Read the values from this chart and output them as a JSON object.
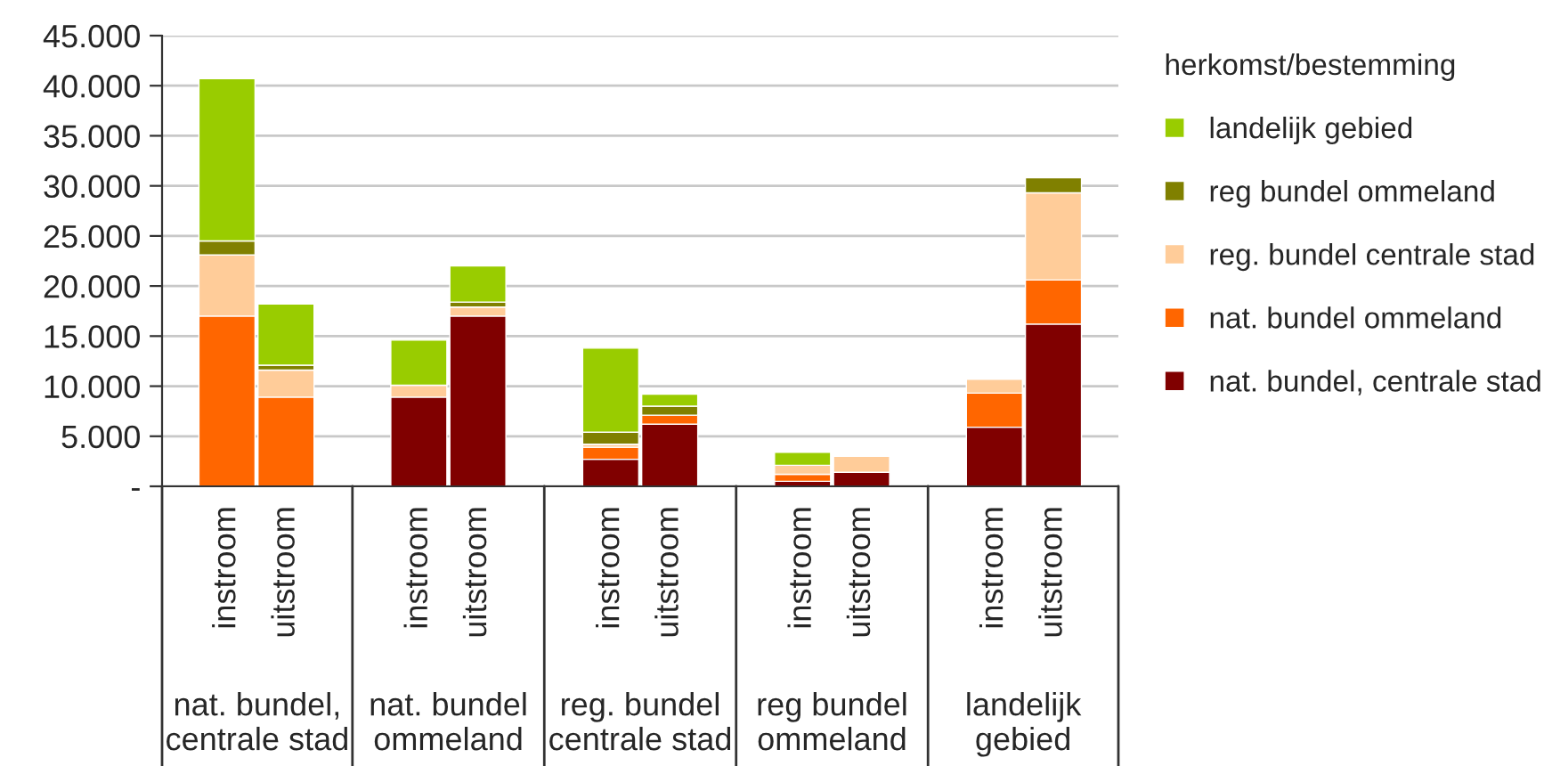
{
  "chart_data": {
    "type": "bar",
    "stacked": true,
    "legend_title": "herkomst/bestemming",
    "legend": "right",
    "grid": "y",
    "categories": [
      "instroom",
      "uitstroom",
      "instroom",
      "uitstroom",
      "instroom",
      "uitstroom",
      "instroom",
      "uitstroom",
      "instroom",
      "uitstroom"
    ],
    "annotations": [
      "nat. bundel, centrale stad",
      "nat. bundel ommeland",
      "reg. bundel centrale stad",
      "reg bundel ommeland",
      "landelijk gebied"
    ],
    "series": [
      {
        "name": "nat. bundel, centrale stad",
        "color": "#800000",
        "values": [
          0,
          0,
          8900,
          17000,
          2700,
          6200,
          500,
          1400,
          5900,
          16200
        ]
      },
      {
        "name": "nat. bundel ommeland",
        "color": "#ff6600",
        "values": [
          17000,
          8900,
          0,
          0,
          1200,
          900,
          700,
          0,
          3400,
          4400
        ]
      },
      {
        "name": "reg. bundel centrale stad",
        "color": "#ffcc99",
        "values": [
          6100,
          2700,
          1200,
          900,
          300,
          0,
          900,
          1600,
          1400,
          8700
        ]
      },
      {
        "name": "reg bundel ommeland",
        "color": "#808000",
        "values": [
          1400,
          500,
          0,
          500,
          1200,
          900,
          0,
          0,
          0,
          1500
        ]
      },
      {
        "name": "landelijk gebied",
        "color": "#99cc00",
        "values": [
          16200,
          6100,
          4500,
          3600,
          8400,
          1200,
          1300,
          0,
          0,
          0
        ]
      }
    ],
    "ylim": [
      0,
      45000
    ],
    "yticks": [
      {
        "value": 0,
        "label": "-"
      },
      {
        "value": 5000,
        "label": "5.000"
      },
      {
        "value": 10000,
        "label": "10.000"
      },
      {
        "value": 15000,
        "label": "15.000"
      },
      {
        "value": 20000,
        "label": "20.000"
      },
      {
        "value": 25000,
        "label": "25.000"
      },
      {
        "value": 30000,
        "label": "30.000"
      },
      {
        "value": 35000,
        "label": "35.000"
      },
      {
        "value": 40000,
        "label": "40.000"
      },
      {
        "value": 45000,
        "label": "45.000"
      }
    ]
  }
}
